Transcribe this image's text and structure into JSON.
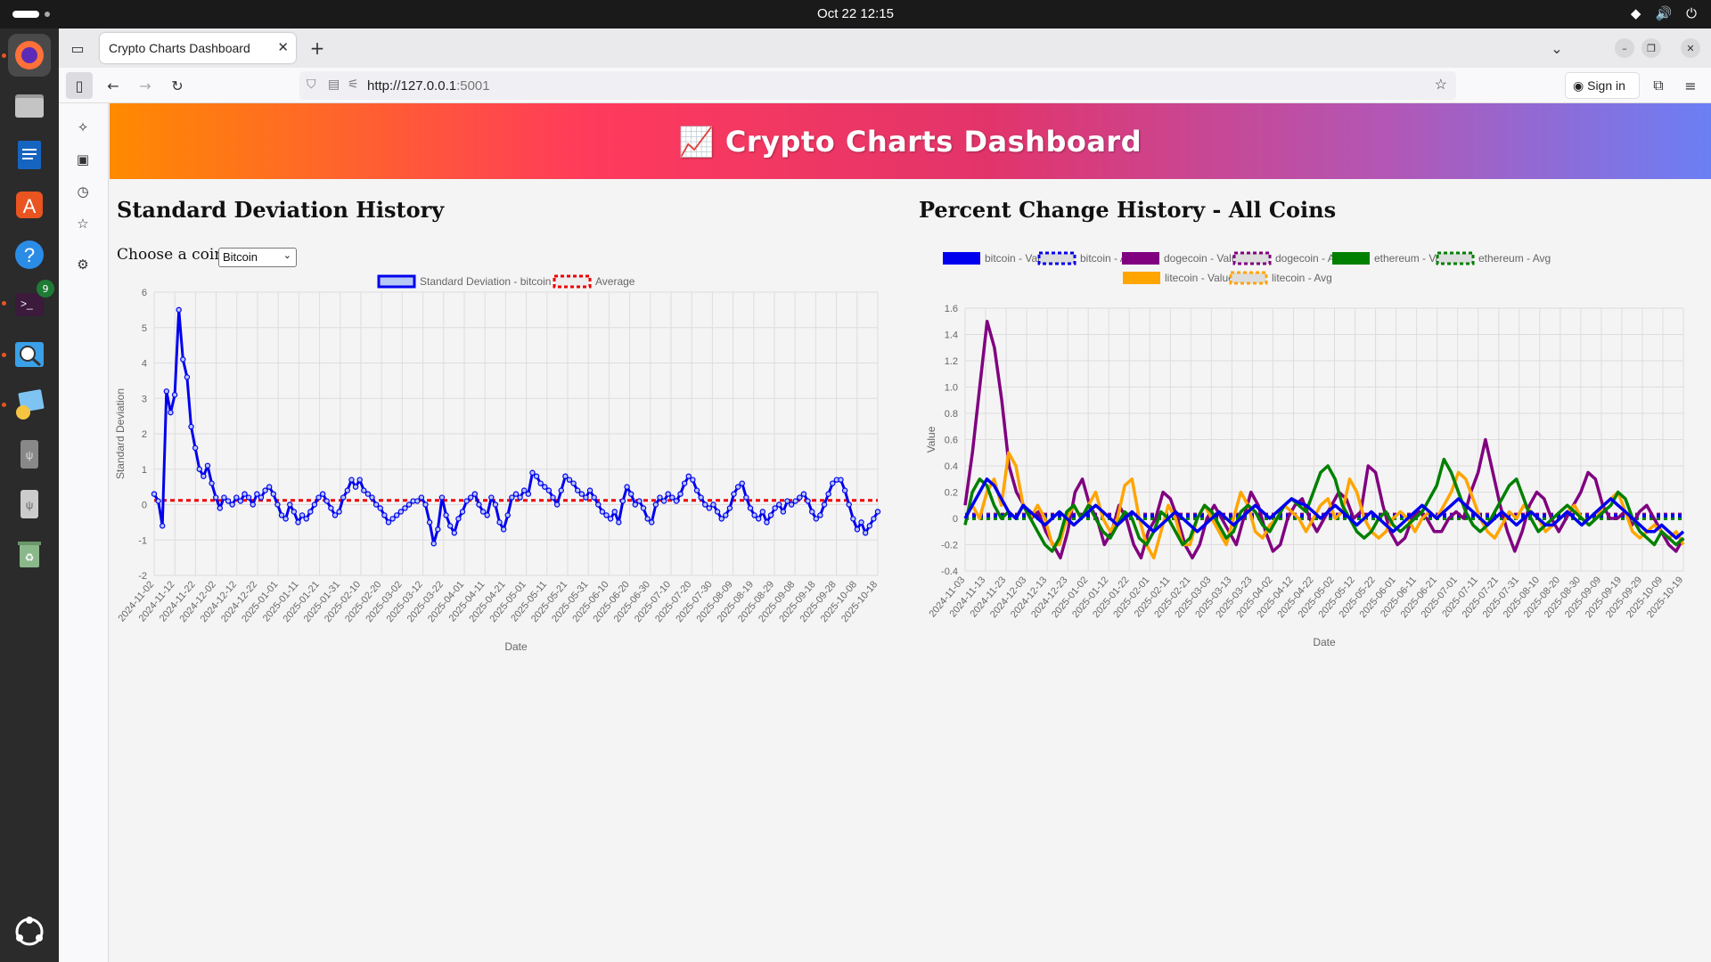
{
  "system": {
    "clock": "Oct 22  12:15",
    "terminal_badge": "9"
  },
  "browser": {
    "tab_title": "Crypto Charts Dashboard",
    "url_host": "http://127.0.0.1",
    "url_port": ":5001",
    "signin_label": "Sign in"
  },
  "page": {
    "banner_title": "📈 Crypto Charts Dashboard",
    "left_title": "Standard Deviation History",
    "right_title": "Percent Change History - All Coins",
    "coin_label": "Choose a coin:",
    "coin_selected": "Bitcoin"
  },
  "chart_data": [
    {
      "type": "line",
      "title": "Standard Deviation History",
      "xlabel": "Date",
      "ylabel": "Standard Deviation",
      "ylim": [
        -2,
        6
      ],
      "yticks": [
        "6",
        "5",
        "4",
        "3",
        "2",
        "1",
        "0",
        "-1",
        "-2"
      ],
      "x_ticks": [
        "2024-11-02",
        "2024-11-12",
        "2024-11-22",
        "2024-12-02",
        "2024-12-12",
        "2024-12-22",
        "2025-01-01",
        "2025-01-11",
        "2025-01-21",
        "2025-01-31",
        "2025-02-10",
        "2025-02-20",
        "2025-03-02",
        "2025-03-12",
        "2025-03-22",
        "2025-04-01",
        "2025-04-11",
        "2025-04-21",
        "2025-05-01",
        "2025-05-11",
        "2025-05-21",
        "2025-05-31",
        "2025-06-10",
        "2025-06-20",
        "2025-06-30",
        "2025-07-10",
        "2025-07-20",
        "2025-07-30",
        "2025-08-09",
        "2025-08-19",
        "2025-08-29",
        "2025-09-08",
        "2025-09-18",
        "2025-09-28",
        "2025-10-08",
        "2025-10-18"
      ],
      "legend": [
        "Standard Deviation - bitcoin",
        "Average"
      ],
      "colors": {
        "series": "#0000ee",
        "average": "#ee0000"
      },
      "average": 0.12,
      "series": [
        {
          "name": "Standard Deviation - bitcoin",
          "values": [
            0.3,
            0.1,
            -0.6,
            3.2,
            2.6,
            3.1,
            5.5,
            4.1,
            3.6,
            2.2,
            1.6,
            1.0,
            0.8,
            1.1,
            0.6,
            0.2,
            -0.1,
            0.2,
            0.1,
            0.0,
            0.2,
            0.1,
            0.3,
            0.2,
            0.0,
            0.3,
            0.2,
            0.4,
            0.5,
            0.3,
            0.0,
            -0.3,
            -0.4,
            0.0,
            -0.2,
            -0.5,
            -0.3,
            -0.4,
            -0.2,
            0.0,
            0.2,
            0.3,
            0.1,
            -0.1,
            -0.3,
            -0.2,
            0.2,
            0.4,
            0.7,
            0.5,
            0.7,
            0.4,
            0.3,
            0.2,
            0.0,
            -0.1,
            -0.3,
            -0.5,
            -0.4,
            -0.3,
            -0.2,
            -0.1,
            0.0,
            0.1,
            0.1,
            0.2,
            0.0,
            -0.5,
            -1.1,
            -0.7,
            0.2,
            -0.3,
            -0.6,
            -0.8,
            -0.4,
            -0.2,
            0.1,
            0.2,
            0.3,
            0.0,
            -0.2,
            -0.3,
            0.2,
            0.0,
            -0.5,
            -0.7,
            -0.3,
            0.2,
            0.3,
            0.2,
            0.4,
            0.3,
            0.9,
            0.8,
            0.6,
            0.5,
            0.4,
            0.2,
            0.0,
            0.4,
            0.8,
            0.7,
            0.6,
            0.4,
            0.3,
            0.2,
            0.4,
            0.2,
            0.0,
            -0.2,
            -0.3,
            -0.4,
            -0.2,
            -0.5,
            0.1,
            0.5,
            0.3,
            0.0,
            0.1,
            -0.1,
            -0.4,
            -0.5,
            0.0,
            0.2,
            0.1,
            0.3,
            0.2,
            0.1,
            0.3,
            0.6,
            0.8,
            0.7,
            0.4,
            0.2,
            0.0,
            -0.1,
            0.0,
            -0.2,
            -0.4,
            -0.3,
            -0.1,
            0.3,
            0.5,
            0.6,
            0.2,
            -0.1,
            -0.3,
            -0.4,
            -0.2,
            -0.5,
            -0.3,
            -0.1,
            0.0,
            -0.2,
            0.1,
            0.0,
            0.1,
            0.2,
            0.3,
            0.1,
            -0.2,
            -0.4,
            -0.3,
            0.0,
            0.3,
            0.6,
            0.7,
            0.7,
            0.4,
            0.0,
            -0.4,
            -0.7,
            -0.5,
            -0.8,
            -0.6,
            -0.4,
            -0.2
          ]
        }
      ]
    },
    {
      "type": "line",
      "title": "Percent Change History - All Coins",
      "xlabel": "Date",
      "ylabel": "Value",
      "ylim": [
        -0.4,
        1.6
      ],
      "yticks": [
        "1.6",
        "1.4",
        "1.2",
        "1.0",
        "0.8",
        "0.6",
        "0.4",
        "0.2",
        "0",
        "-0.2",
        "-0.4"
      ],
      "x_ticks": [
        "2024-11-03",
        "2024-11-13",
        "2024-11-23",
        "2024-12-03",
        "2024-12-13",
        "2024-12-23",
        "2025-01-02",
        "2025-01-12",
        "2025-01-22",
        "2025-02-01",
        "2025-02-11",
        "2025-02-21",
        "2025-03-03",
        "2025-03-13",
        "2025-03-23",
        "2025-04-02",
        "2025-04-12",
        "2025-04-22",
        "2025-05-02",
        "2025-05-12",
        "2025-05-22",
        "2025-06-01",
        "2025-06-11",
        "2025-06-21",
        "2025-07-01",
        "2025-07-11",
        "2025-07-21",
        "2025-07-31",
        "2025-08-10",
        "2025-08-20",
        "2025-08-30",
        "2025-09-09",
        "2025-09-19",
        "2025-09-29",
        "2025-10-09",
        "2025-10-19"
      ],
      "legend": [
        "bitcoin - Value",
        "bitcoin - Avg",
        "dogecoin - Value",
        "dogecoin - Avg",
        "ethereum - Value",
        "ethereum - Avg",
        "litecoin - Value",
        "litecoin - Avg"
      ],
      "series": [
        {
          "name": "dogecoin",
          "color": "#800080",
          "avg": 0.03,
          "values": [
            0.1,
            0.5,
            1.0,
            1.5,
            1.3,
            0.9,
            0.4,
            0.2,
            0.1,
            0.0,
            0.05,
            -0.1,
            -0.2,
            -0.3,
            -0.1,
            0.2,
            0.3,
            0.1,
            0.0,
            -0.2,
            -0.1,
            0.1,
            0.0,
            -0.2,
            -0.3,
            -0.1,
            0.0,
            0.2,
            0.15,
            0.0,
            -0.2,
            -0.3,
            -0.2,
            0.0,
            0.1,
            0.0,
            -0.1,
            -0.2,
            0.0,
            0.2,
            0.1,
            -0.1,
            -0.25,
            -0.2,
            0.0,
            0.1,
            0.15,
            0.0,
            -0.1,
            0.0,
            0.1,
            0.2,
            0.15,
            0.0,
            0.05,
            0.4,
            0.35,
            0.1,
            -0.1,
            -0.2,
            -0.15,
            0.0,
            0.05,
            0.0,
            -0.1,
            -0.1,
            0.0,
            0.05,
            0.0,
            0.2,
            0.35,
            0.6,
            0.35,
            0.1,
            -0.1,
            -0.25,
            -0.1,
            0.1,
            0.2,
            0.15,
            0.0,
            -0.1,
            0.0,
            0.1,
            0.2,
            0.35,
            0.3,
            0.1,
            0.0,
            0.0,
            0.05,
            -0.05,
            0.05,
            0.1,
            0.0,
            -0.1,
            -0.2,
            -0.25,
            -0.15
          ]
        },
        {
          "name": "litecoin",
          "color": "#ffa500",
          "avg": 0.02,
          "values": [
            0.0,
            0.1,
            0.0,
            0.2,
            0.3,
            0.1,
            0.5,
            0.4,
            0.1,
            0.0,
            0.1,
            0.0,
            -0.2,
            -0.2,
            0.0,
            0.1,
            0.0,
            0.1,
            0.2,
            0.0,
            -0.1,
            0.0,
            0.25,
            0.3,
            0.0,
            -0.2,
            -0.3,
            -0.1,
            0.1,
            0.0,
            -0.2,
            -0.2,
            0.0,
            0.1,
            0.0,
            -0.1,
            -0.2,
            0.0,
            0.2,
            0.1,
            -0.1,
            -0.15,
            -0.05,
            0.0,
            0.1,
            0.05,
            0.0,
            -0.1,
            0.0,
            0.1,
            0.15,
            0.0,
            0.05,
            0.3,
            0.2,
            0.0,
            -0.1,
            -0.15,
            -0.1,
            0.0,
            0.05,
            0.0,
            -0.1,
            0.0,
            0.05,
            0.0,
            0.1,
            0.2,
            0.35,
            0.3,
            0.15,
            0.0,
            -0.1,
            -0.15,
            -0.05,
            0.05,
            0.0,
            0.1,
            0.05,
            0.0,
            -0.1,
            -0.05,
            0.0,
            0.05,
            0.1,
            0.0,
            -0.05,
            0.0,
            0.1,
            0.15,
            0.2,
            0.05,
            -0.1,
            -0.15,
            -0.1,
            -0.05,
            -0.1,
            -0.15,
            -0.1,
            -0.2
          ]
        },
        {
          "name": "ethereum",
          "color": "#008000",
          "avg": 0.0,
          "values": [
            -0.05,
            0.2,
            0.3,
            0.25,
            0.1,
            0.0,
            0.05,
            0.0,
            0.1,
            0.0,
            -0.1,
            -0.2,
            -0.25,
            -0.15,
            0.05,
            0.1,
            0.0,
            0.1,
            0.0,
            -0.1,
            -0.15,
            -0.05,
            0.05,
            0.0,
            -0.15,
            -0.2,
            -0.1,
            0.05,
            0.0,
            -0.1,
            -0.2,
            -0.15,
            0.0,
            0.1,
            0.05,
            -0.05,
            -0.15,
            -0.1,
            0.05,
            0.1,
            0.05,
            -0.05,
            -0.1,
            0.0,
            0.1,
            0.15,
            0.1,
            0.05,
            0.2,
            0.35,
            0.4,
            0.3,
            0.1,
            0.0,
            -0.1,
            -0.15,
            -0.1,
            0.0,
            0.05,
            -0.05,
            -0.1,
            -0.05,
            0.0,
            0.05,
            0.15,
            0.25,
            0.45,
            0.35,
            0.2,
            0.05,
            -0.05,
            -0.1,
            -0.05,
            0.05,
            0.15,
            0.25,
            0.3,
            0.15,
            0.0,
            -0.1,
            -0.05,
            0.0,
            0.05,
            0.1,
            0.05,
            0.0,
            -0.05,
            0.0,
            0.05,
            0.1,
            0.2,
            0.15,
            0.0,
            -0.1,
            -0.15,
            -0.2,
            -0.1,
            -0.15,
            -0.2,
            -0.15
          ]
        },
        {
          "name": "bitcoin",
          "color": "#0000ee",
          "avg": 0.02,
          "values": [
            0.0,
            0.1,
            0.2,
            0.3,
            0.25,
            0.15,
            0.05,
            0.0,
            0.1,
            0.05,
            0.0,
            -0.05,
            0.0,
            0.05,
            0.0,
            -0.05,
            0.0,
            0.05,
            0.1,
            0.05,
            0.0,
            -0.05,
            0.0,
            0.05,
            0.0,
            -0.05,
            -0.1,
            -0.05,
            0.0,
            0.05,
            0.0,
            -0.05,
            -0.1,
            -0.05,
            0.0,
            0.05,
            0.0,
            -0.05,
            0.0,
            0.05,
            0.1,
            0.05,
            0.0,
            0.05,
            0.1,
            0.15,
            0.12,
            0.1,
            0.05,
            0.0,
            0.05,
            0.1,
            0.05,
            0.0,
            -0.05,
            0.0,
            0.05,
            0.0,
            -0.05,
            -0.1,
            -0.05,
            0.0,
            0.05,
            0.1,
            0.05,
            0.0,
            0.05,
            0.1,
            0.15,
            0.1,
            0.05,
            0.0,
            -0.05,
            0.0,
            0.05,
            0.0,
            -0.05,
            0.0,
            0.05,
            0.0,
            -0.05,
            -0.05,
            0.0,
            0.05,
            0.0,
            -0.05,
            0.0,
            0.05,
            0.1,
            0.15,
            0.1,
            0.05,
            0.0,
            -0.05,
            -0.1,
            -0.1,
            -0.05,
            -0.1,
            -0.15,
            -0.1
          ]
        }
      ]
    }
  ]
}
